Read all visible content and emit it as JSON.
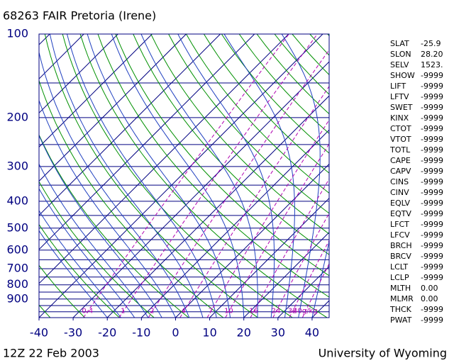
{
  "chart_data": {
    "type": "skewt",
    "title": "68263 FAIR Pretoria (Irene)",
    "time_label": "12Z 22 Feb 2003",
    "source": "University of Wyoming",
    "log_y": true,
    "ylim": [
      1050,
      100
    ],
    "yticks": [
      100,
      200,
      300,
      400,
      500,
      600,
      700,
      800,
      900
    ],
    "xlim": [
      -40,
      45
    ],
    "xticks": [
      -40,
      -30,
      -20,
      -10,
      0,
      10,
      20,
      30,
      40
    ],
    "mixing_ratios": [
      0.4,
      1,
      2,
      4,
      7,
      10,
      16,
      24,
      32,
      {
        "value": 40,
        "label": "40g/kg"
      }
    ],
    "indices": [
      {
        "name": "SLAT",
        "value": "-25.9"
      },
      {
        "name": "SLON",
        "value": "28.20"
      },
      {
        "name": "SELV",
        "value": "1523."
      },
      {
        "name": "SHOW",
        "value": "-9999"
      },
      {
        "name": "LIFT",
        "value": "-9999"
      },
      {
        "name": "LFTV",
        "value": "-9999"
      },
      {
        "name": "SWET",
        "value": "-9999"
      },
      {
        "name": "KINX",
        "value": "-9999"
      },
      {
        "name": "CTOT",
        "value": "-9999"
      },
      {
        "name": "VTOT",
        "value": "-9999"
      },
      {
        "name": "TOTL",
        "value": "-9999"
      },
      {
        "name": "CAPE",
        "value": "-9999"
      },
      {
        "name": "CAPV",
        "value": "-9999"
      },
      {
        "name": "CINS",
        "value": "-9999"
      },
      {
        "name": "CINV",
        "value": "-9999"
      },
      {
        "name": "EQLV",
        "value": "-9999"
      },
      {
        "name": "EQTV",
        "value": "-9999"
      },
      {
        "name": "LFCT",
        "value": "-9999"
      },
      {
        "name": "LFCV",
        "value": "-9999"
      },
      {
        "name": "BRCH",
        "value": "-9999"
      },
      {
        "name": "BRCV",
        "value": "-9999"
      },
      {
        "name": "LCLT",
        "value": "-9999"
      },
      {
        "name": "LCLP",
        "value": "-9999"
      },
      {
        "name": "MLTH",
        "value": "0.00"
      },
      {
        "name": "MLMR",
        "value": "0.00"
      },
      {
        "name": "THCK",
        "value": "-9999"
      },
      {
        "name": "PWAT",
        "value": "-9999"
      }
    ]
  }
}
